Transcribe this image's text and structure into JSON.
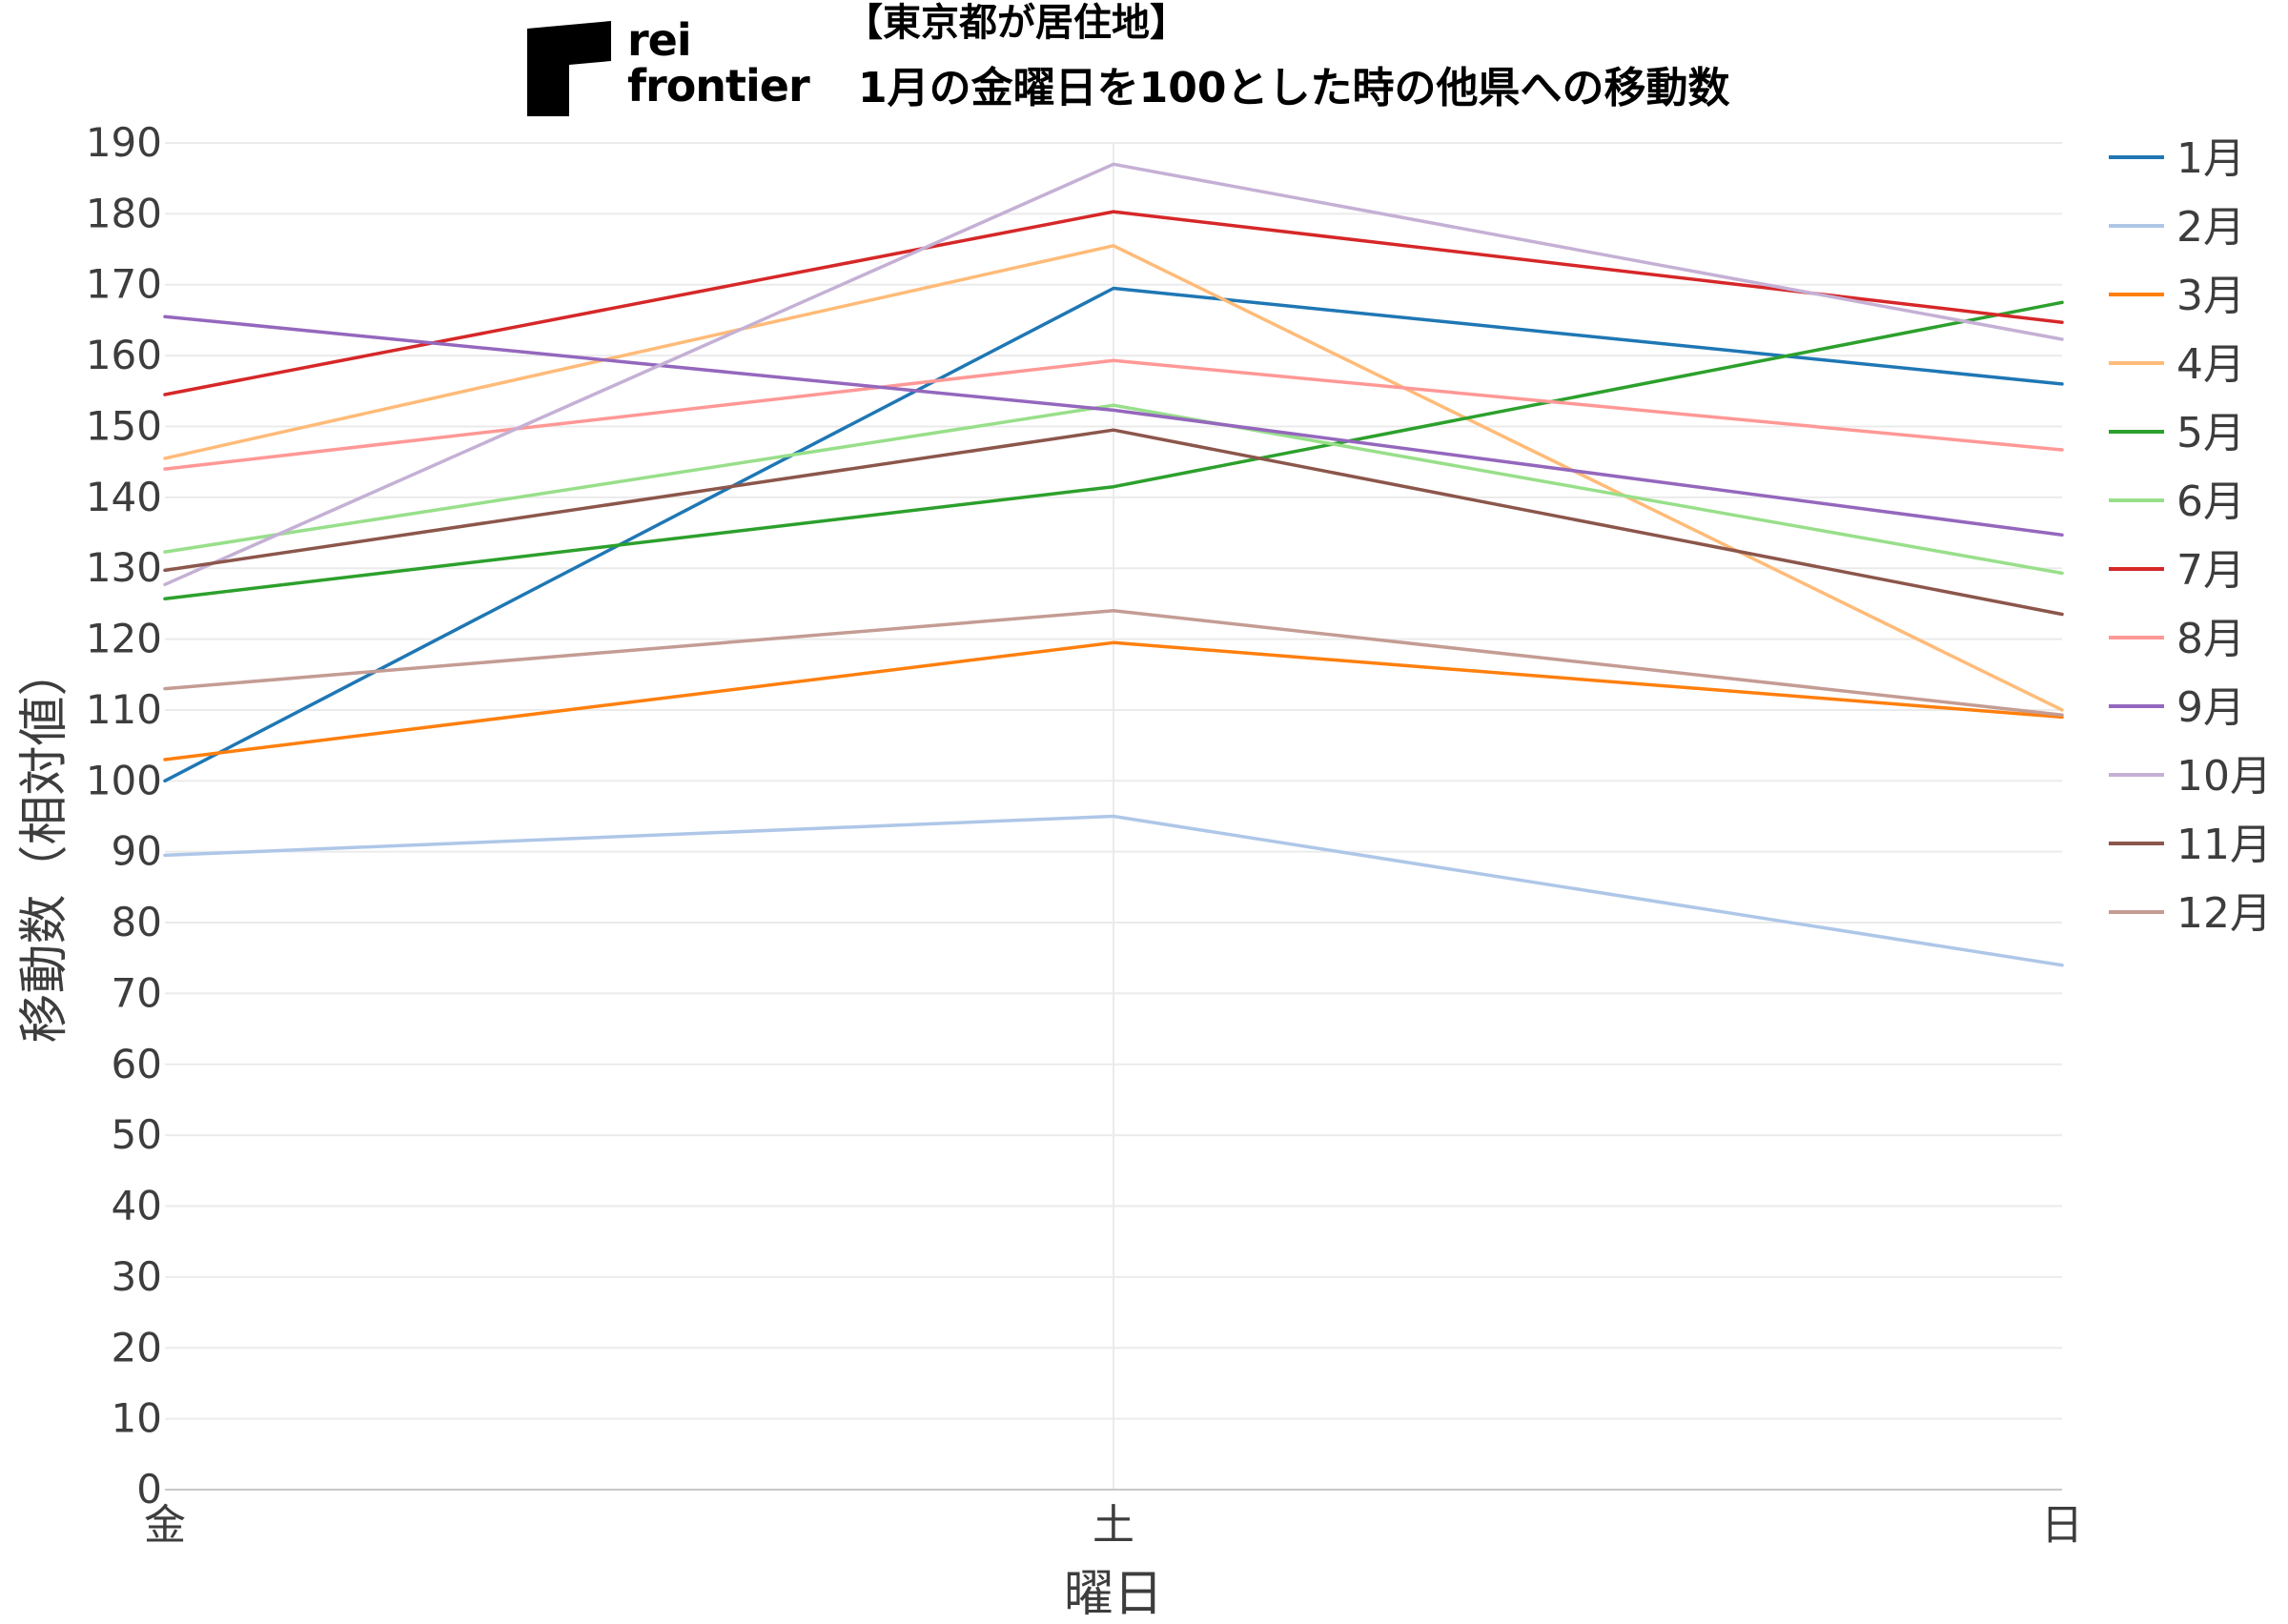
{
  "logo": {
    "line1": "rei",
    "line2": "frontier"
  },
  "title": {
    "line1": "【東京都が居住地】",
    "line2": "1月の金曜日を100とした時の他県への移動数"
  },
  "chart_data": {
    "type": "line",
    "title": "【東京都が居住地】 1月の金曜日を100とした時の他県への移動数",
    "xlabel": "曜日",
    "ylabel": "移動数（相対値）",
    "categories": [
      "金",
      "土",
      "日"
    ],
    "ylim": [
      0,
      190
    ],
    "yticks": [
      0,
      10,
      20,
      30,
      40,
      50,
      60,
      70,
      80,
      90,
      100,
      110,
      120,
      130,
      140,
      150,
      160,
      170,
      180,
      190
    ],
    "grid": true,
    "legend_position": "right",
    "series": [
      {
        "name": "1月",
        "color": "#1f77b4",
        "values": [
          100,
          169.5,
          156
        ]
      },
      {
        "name": "2月",
        "color": "#aec7e8",
        "values": [
          89.5,
          95,
          74
        ]
      },
      {
        "name": "3月",
        "color": "#ff7f0e",
        "values": [
          103,
          119.5,
          109
        ]
      },
      {
        "name": "4月",
        "color": "#ffbb78",
        "values": [
          145.5,
          175.5,
          110
        ]
      },
      {
        "name": "5月",
        "color": "#2ca02c",
        "values": [
          125.7,
          141.5,
          167.5
        ]
      },
      {
        "name": "6月",
        "color": "#98df8a",
        "values": [
          132.3,
          153,
          129.3
        ]
      },
      {
        "name": "7月",
        "color": "#d62728",
        "values": [
          154.5,
          180.3,
          164.7
        ]
      },
      {
        "name": "8月",
        "color": "#ff9896",
        "values": [
          144,
          159.3,
          146.7
        ]
      },
      {
        "name": "9月",
        "color": "#9467bd",
        "values": [
          165.5,
          152.3,
          134.7
        ]
      },
      {
        "name": "10月",
        "color": "#c5b0d5",
        "values": [
          127.7,
          187,
          162.3
        ]
      },
      {
        "name": "11月",
        "color": "#8c564b",
        "values": [
          129.7,
          149.5,
          123.5
        ]
      },
      {
        "name": "12月",
        "color": "#c49c94",
        "values": [
          113,
          124,
          109.3
        ]
      }
    ]
  }
}
